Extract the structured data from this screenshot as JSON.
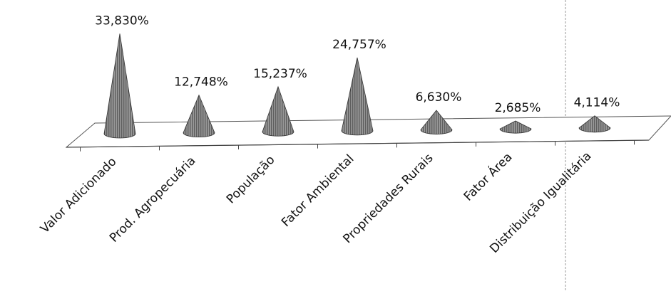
{
  "chart_data": {
    "type": "bar",
    "style": "3d-cone",
    "categories": [
      "Valor Adicionado",
      "Prod. Agropecuária",
      "População",
      "Fator Ambiental",
      "Propriedades Rurais",
      "Fator Área",
      "Distribuição Igualitária"
    ],
    "values": [
      33.83,
      12.748,
      15.237,
      24.757,
      6.63,
      2.685,
      4.114
    ],
    "data_labels": [
      "33,830%",
      "12,748%",
      "15,237%",
      "24,757%",
      "6,630%",
      "2,685%",
      "4,114%"
    ],
    "title": "",
    "xlabel": "",
    "ylabel": "",
    "grid": false,
    "legend": false,
    "ylim": [
      0,
      35
    ],
    "colors": {
      "cone": "#8a8a8a",
      "cone_dark": "#3c3c3c",
      "floor": "#ffffff",
      "axis": "#555555"
    }
  }
}
